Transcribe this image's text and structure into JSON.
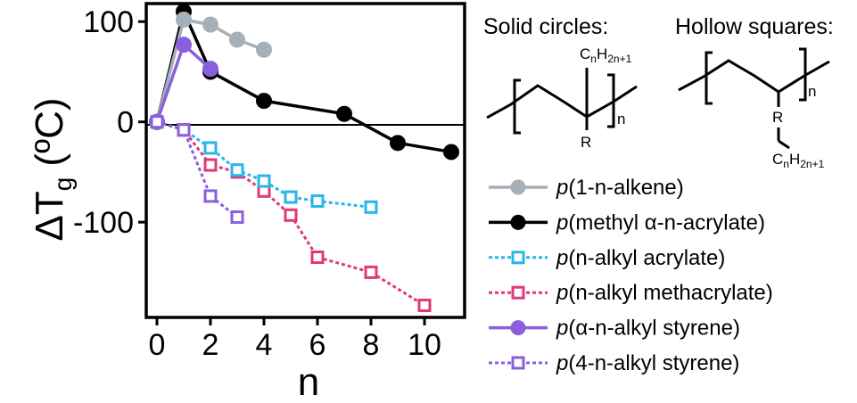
{
  "chart_data": {
    "type": "line",
    "xlabel": "n",
    "ylabel_main": "ΔT",
    "ylabel_sub": "g",
    "ylabel_unit": "(ºC)",
    "xlim": [
      -0.4,
      11.5
    ],
    "ylim": [
      -195,
      118
    ],
    "xticks": [
      0,
      2,
      4,
      6,
      8,
      10
    ],
    "yticks": [
      100,
      0,
      -100
    ],
    "zero_line": true,
    "grid": false,
    "legend_position": "right",
    "series": [
      {
        "name_prefix": "p",
        "name_rest": "(1-n-alkene)",
        "color": "#a6b0b9",
        "marker": "circle",
        "filled": true,
        "linestyle": "solid",
        "x": [
          0,
          1,
          2,
          3,
          4
        ],
        "y": [
          0,
          102,
          97,
          82,
          72
        ]
      },
      {
        "name_prefix": "p",
        "name_rest": "(methyl α-n-acrylate)",
        "color": "#000000",
        "marker": "circle",
        "filled": true,
        "linestyle": "solid",
        "x": [
          0,
          1,
          2,
          4,
          7,
          9,
          11
        ],
        "y": [
          0,
          110,
          50,
          21,
          8,
          -21,
          -30
        ]
      },
      {
        "name_prefix": "p",
        "name_rest": "(n-alkyl acrylate)",
        "color": "#29b6ea",
        "marker": "square",
        "filled": false,
        "linestyle": "dotted",
        "x": [
          0,
          1,
          2,
          3,
          4,
          5,
          6,
          8
        ],
        "y": [
          0,
          -8,
          -26,
          -48,
          -59,
          -75,
          -79,
          -85
        ]
      },
      {
        "name_prefix": "p",
        "name_rest": "(n-alkyl methacrylate)",
        "color": "#e0397a",
        "marker": "square",
        "filled": false,
        "linestyle": "dotted",
        "x": [
          0,
          1,
          2,
          3,
          4,
          5,
          6,
          8,
          10
        ],
        "y": [
          0,
          -8,
          -43,
          -50,
          -69,
          -93,
          -135,
          -150,
          -183
        ]
      },
      {
        "name_prefix": "p",
        "name_rest": "(α-n-alkyl styrene)",
        "color": "#8a5fdb",
        "marker": "circle",
        "filled": true,
        "linestyle": "solid",
        "x": [
          0,
          1,
          2
        ],
        "y": [
          0,
          77,
          53
        ]
      },
      {
        "name_prefix": "p",
        "name_rest": "(4-n-alkyl styrene)",
        "color": "#8a5fdb",
        "marker": "square",
        "filled": false,
        "linestyle": "dotted",
        "x": [
          0,
          1,
          2,
          3
        ],
        "y": [
          0,
          -8,
          -74,
          -95
        ]
      }
    ]
  },
  "structures": {
    "solid_label": "Solid circles:",
    "hollow_label": "Hollow squares:",
    "side_chain_formula": {
      "c": "C",
      "n": "n",
      "h": "H",
      "sub": "2n+1"
    },
    "r_group": "R",
    "repeat_index": "n"
  }
}
